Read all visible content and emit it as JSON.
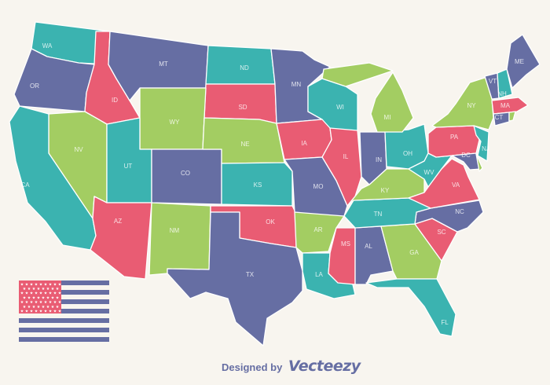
{
  "palette": {
    "background": "#f8f5ef",
    "teal": "#3bb3b0",
    "purple": "#666ea3",
    "pink": "#e95c73",
    "green": "#a3cd62",
    "border": "#ffffff"
  },
  "states": [
    {
      "abbr": "WA",
      "color": "teal"
    },
    {
      "abbr": "OR",
      "color": "purple"
    },
    {
      "abbr": "ID",
      "color": "pink"
    },
    {
      "abbr": "MT",
      "color": "purple"
    },
    {
      "abbr": "ND",
      "color": "teal"
    },
    {
      "abbr": "SD",
      "color": "pink"
    },
    {
      "abbr": "WY",
      "color": "green"
    },
    {
      "abbr": "NV",
      "color": "green"
    },
    {
      "abbr": "CA",
      "color": "teal"
    },
    {
      "abbr": "UT",
      "color": "teal"
    },
    {
      "abbr": "CO",
      "color": "purple"
    },
    {
      "abbr": "NE",
      "color": "green"
    },
    {
      "abbr": "KS",
      "color": "teal"
    },
    {
      "abbr": "AZ",
      "color": "pink"
    },
    {
      "abbr": "NM",
      "color": "green"
    },
    {
      "abbr": "OK",
      "color": "pink"
    },
    {
      "abbr": "TX",
      "color": "purple"
    },
    {
      "abbr": "MN",
      "color": "purple"
    },
    {
      "abbr": "WI",
      "color": "teal"
    },
    {
      "abbr": "IA",
      "color": "pink"
    },
    {
      "abbr": "IL",
      "color": "pink"
    },
    {
      "abbr": "MO",
      "color": "purple"
    },
    {
      "abbr": "AR",
      "color": "green"
    },
    {
      "abbr": "LA",
      "color": "teal"
    },
    {
      "abbr": "MS",
      "color": "pink"
    },
    {
      "abbr": "AL",
      "color": "purple"
    },
    {
      "abbr": "GA",
      "color": "green"
    },
    {
      "abbr": "FL",
      "color": "teal"
    },
    {
      "abbr": "SC",
      "color": "pink"
    },
    {
      "abbr": "NC",
      "color": "purple"
    },
    {
      "abbr": "TN",
      "color": "teal"
    },
    {
      "abbr": "KY",
      "color": "green"
    },
    {
      "abbr": "IN",
      "color": "purple"
    },
    {
      "abbr": "OH",
      "color": "teal"
    },
    {
      "abbr": "MI",
      "color": "green"
    },
    {
      "abbr": "WV",
      "color": "teal"
    },
    {
      "abbr": "VA",
      "color": "pink"
    },
    {
      "abbr": "PA",
      "color": "pink"
    },
    {
      "abbr": "NY",
      "color": "green"
    },
    {
      "abbr": "NJ",
      "color": "teal"
    },
    {
      "abbr": "DC",
      "color": "purple"
    },
    {
      "abbr": "DE",
      "color": "green",
      "unlabeled": true
    },
    {
      "abbr": "VT",
      "color": "purple"
    },
    {
      "abbr": "NH",
      "color": "teal"
    },
    {
      "abbr": "ME",
      "color": "purple"
    },
    {
      "abbr": "MA",
      "color": "pink"
    },
    {
      "abbr": "CT",
      "color": "purple"
    },
    {
      "abbr": "RI",
      "color": "green",
      "unlabeled": true
    }
  ],
  "flag": {
    "canton_color": "#e95c73",
    "stripe_color": "#666ea3",
    "stripes": 7
  },
  "credit": {
    "prefix": "Designed by",
    "brand": "Vecteezy"
  }
}
